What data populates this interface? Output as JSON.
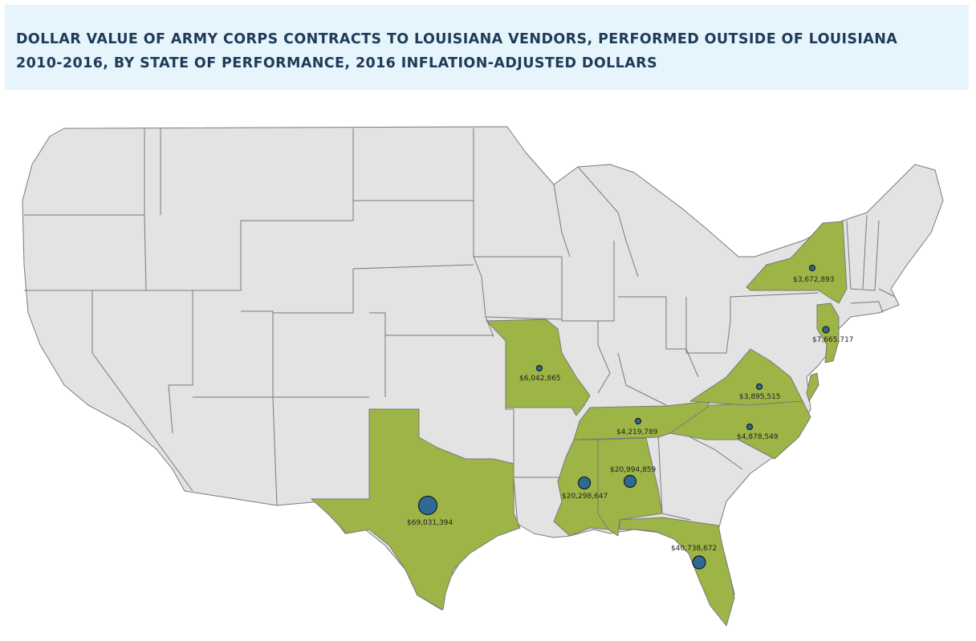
{
  "header": {
    "title_line1": "DOLLAR VALUE OF ARMY CORPS CONTRACTS TO LOUISIANA VENDORS, PERFORMED OUTSIDE OF LOUISIANA",
    "title_line2": "2010-2016, BY STATE OF PERFORMANCE, 2016 INFLATION-ADJUSTED DOLLARS"
  },
  "colors": {
    "highlight_state": "#9db446",
    "base_state": "#e3e3e3",
    "bubble": "#2e6b94",
    "header_bg": "#e6f4fc",
    "title_text": "#1e3b57"
  },
  "states": [
    {
      "state": "Texas",
      "value_label": "$69,031,394",
      "value": 69031394
    },
    {
      "state": "Florida",
      "value_label": "$40,738,672",
      "value": 40738672
    },
    {
      "state": "Alabama",
      "value_label": "$20,994,859",
      "value": 20994859
    },
    {
      "state": "Mississippi",
      "value_label": "$20,298,647",
      "value": 20298647
    },
    {
      "state": "New Jersey",
      "value_label": "$7,665,717",
      "value": 7665717
    },
    {
      "state": "Missouri",
      "value_label": "$6,042,865",
      "value": 6042865
    },
    {
      "state": "North Carolina",
      "value_label": "$4,878,549",
      "value": 4878549
    },
    {
      "state": "Tennessee",
      "value_label": "$4,219,789",
      "value": 4219789
    },
    {
      "state": "Virginia",
      "value_label": "$3,895,515",
      "value": 3895515
    },
    {
      "state": "New York",
      "value_label": "$3,672,893",
      "value": 3672893
    }
  ]
}
